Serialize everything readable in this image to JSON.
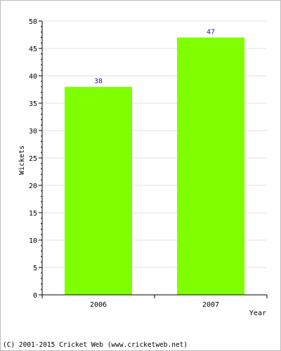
{
  "chart_data": {
    "type": "bar",
    "categories": [
      "2006",
      "2007"
    ],
    "values": [
      38,
      47
    ],
    "data_labels": [
      "38",
      "47"
    ],
    "xlabel": "Year",
    "ylabel": "Wickets",
    "ylim": [
      0,
      50
    ],
    "yticks": [
      "0",
      "5",
      "10",
      "15",
      "20",
      "25",
      "30",
      "35",
      "40",
      "45",
      "50"
    ],
    "grid": true,
    "bar_color": "#80ff00",
    "label_color": "#1a1aa6"
  },
  "footer": {
    "copyright": "(C) 2001-2015 Cricket Web (www.cricketweb.net)"
  }
}
